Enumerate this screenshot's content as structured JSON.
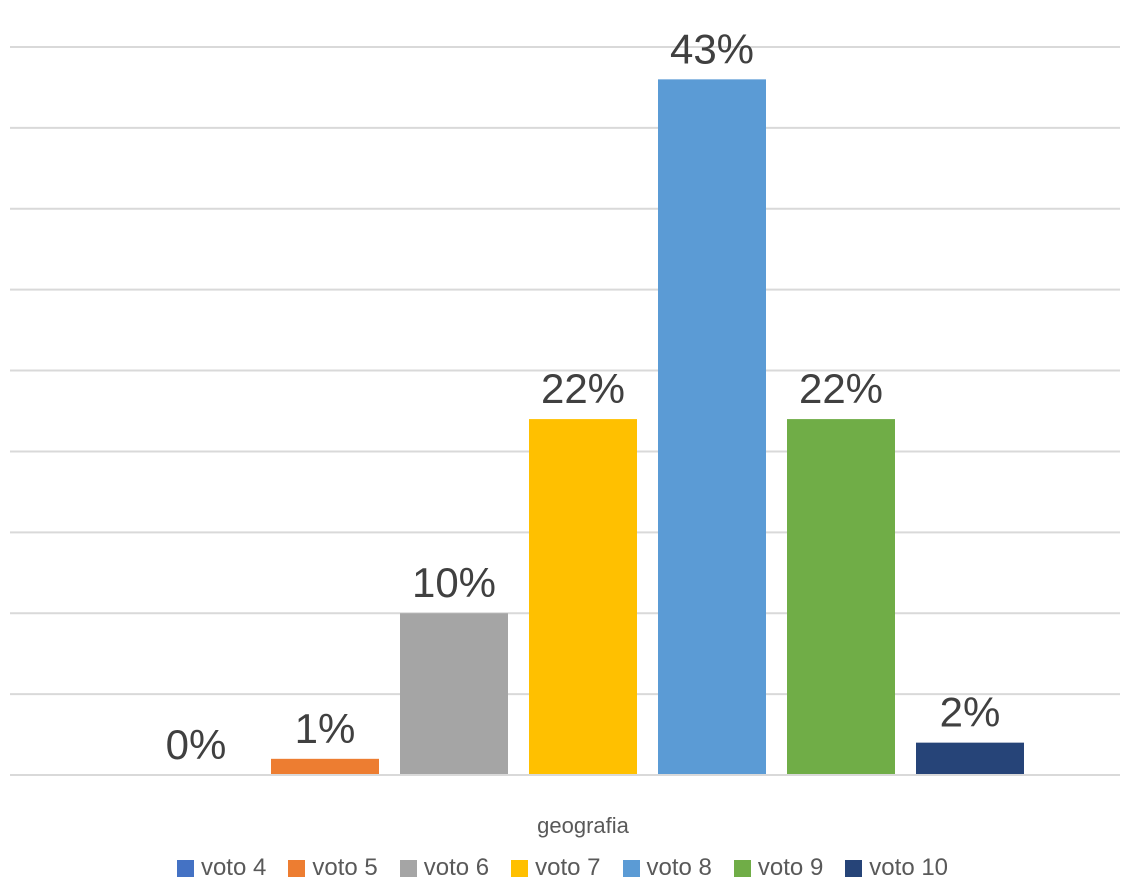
{
  "chart_data": {
    "type": "bar",
    "categories": [
      "geografia"
    ],
    "series": [
      {
        "name": "voto 4",
        "values": [
          0
        ],
        "label": "0%",
        "color": "#4472C4"
      },
      {
        "name": "voto 5",
        "values": [
          1
        ],
        "label": "1%",
        "color": "#ED7D31"
      },
      {
        "name": "voto 6",
        "values": [
          10
        ],
        "label": "10%",
        "color": "#A5A5A5"
      },
      {
        "name": "voto 7",
        "values": [
          22
        ],
        "label": "22%",
        "color": "#FFC000"
      },
      {
        "name": "voto 8",
        "values": [
          43
        ],
        "label": "43%",
        "color": "#5B9BD5"
      },
      {
        "name": "voto 9",
        "values": [
          22
        ],
        "label": "22%",
        "color": "#70AD47"
      },
      {
        "name": "voto 10",
        "values": [
          2
        ],
        "label": "2%",
        "color": "#264478"
      }
    ],
    "ylim": [
      0,
      45
    ],
    "grid": true,
    "legend_position": "bottom"
  }
}
